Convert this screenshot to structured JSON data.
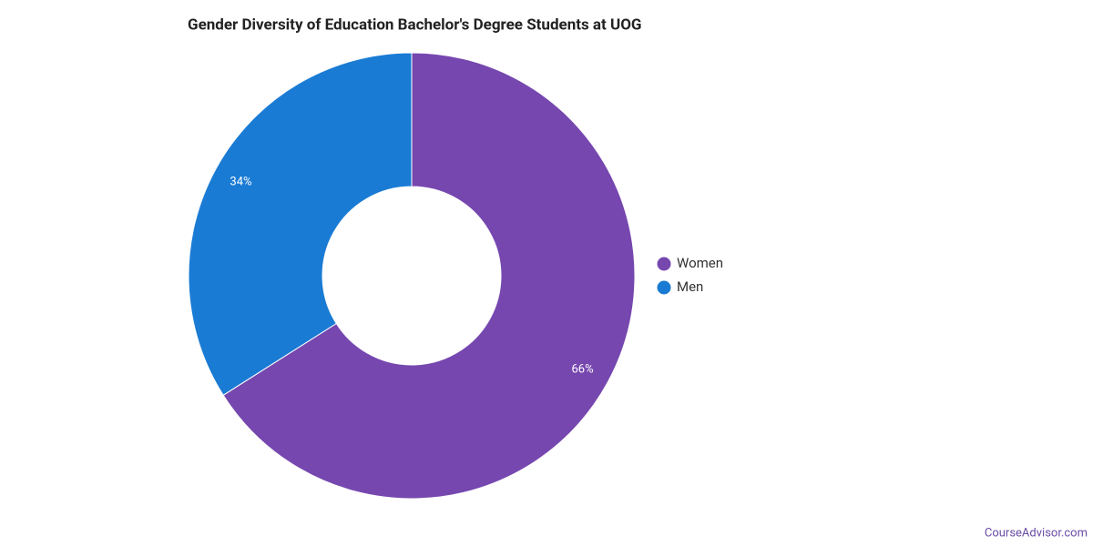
{
  "chart_data": {
    "type": "pie",
    "title": "Gender Diversity of Education Bachelor's Degree Students at UOG",
    "categories": [
      "Women",
      "Men"
    ],
    "values": [
      66,
      34
    ],
    "value_labels": [
      "66%",
      "34%"
    ],
    "colors": [
      "#7647af",
      "#1a7bd4"
    ],
    "legend": "right"
  },
  "footer": "CourseAdvisor.com"
}
